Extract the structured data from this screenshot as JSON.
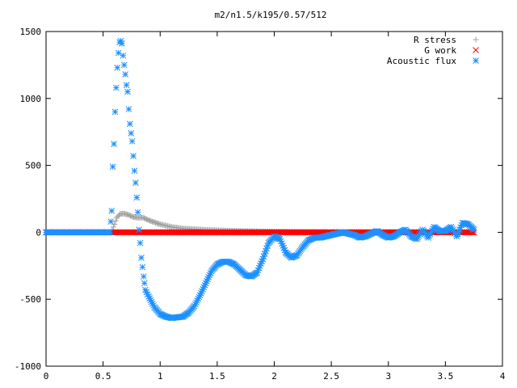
{
  "chart_data": {
    "type": "scatter",
    "title": "m2/n1.5/k195/0.57/512",
    "xlabel": "",
    "ylabel": "",
    "xlim": [
      0,
      4
    ],
    "ylim": [
      -1000,
      1500
    ],
    "xticks": [
      0,
      0.5,
      1,
      1.5,
      2,
      2.5,
      3,
      3.5,
      4
    ],
    "xtick_labels": [
      "0",
      "0.5",
      "1",
      "1.5",
      "2",
      "2.5",
      "3",
      "3.5",
      "4"
    ],
    "yticks": [
      -1000,
      -500,
      0,
      500,
      1000,
      1500
    ],
    "ytick_labels": [
      "-1000",
      "-500",
      "0",
      "500",
      "1000",
      "1500"
    ],
    "grid": false,
    "legend_position": "top-right",
    "series": [
      {
        "name": "R stress",
        "marker": "plus",
        "color": "#a0a0a0",
        "x": [
          0.0,
          0.57,
          0.6,
          0.62,
          0.65,
          0.68,
          0.72,
          0.76,
          0.8,
          0.85,
          0.9,
          0.95,
          1.0,
          1.1,
          1.2,
          1.4,
          1.6,
          1.8,
          2.0,
          2.3,
          2.6,
          3.0,
          3.4,
          3.75
        ],
        "y": [
          0,
          0,
          60,
          110,
          138,
          140,
          132,
          115,
          110,
          110,
          90,
          75,
          60,
          40,
          28,
          18,
          12,
          8,
          5,
          3,
          2,
          1,
          0,
          0
        ]
      },
      {
        "name": "G work",
        "marker": "cross",
        "color": "#ff0000",
        "x": [
          0.0,
          0.57,
          1.0,
          1.5,
          2.0,
          2.5,
          3.0,
          3.5,
          3.75
        ],
        "y": [
          0,
          0,
          0,
          0,
          0,
          0,
          0,
          0,
          0
        ]
      },
      {
        "name": "Acoustic flux",
        "marker": "star",
        "color": "#1e90ff",
        "x": [
          0.0,
          0.56,
          0.575,
          0.585,
          0.595,
          0.605,
          0.615,
          0.625,
          0.635,
          0.645,
          0.655,
          0.665,
          0.675,
          0.685,
          0.695,
          0.705,
          0.715,
          0.725,
          0.735,
          0.745,
          0.755,
          0.765,
          0.775,
          0.785,
          0.795,
          0.805,
          0.815,
          0.825,
          0.835,
          0.845,
          0.855,
          0.87,
          0.9,
          0.95,
          1.0,
          1.05,
          1.1,
          1.15,
          1.2,
          1.25,
          1.3,
          1.35,
          1.4,
          1.45,
          1.5,
          1.55,
          1.6,
          1.65,
          1.7,
          1.75,
          1.8,
          1.85,
          1.9,
          1.95,
          2.0,
          2.05,
          2.1,
          2.15,
          2.2,
          2.25,
          2.3,
          2.35,
          2.4,
          2.45,
          2.5,
          2.55,
          2.6,
          2.65,
          2.7,
          2.75,
          2.8,
          2.85,
          2.9,
          2.95,
          3.0,
          3.05,
          3.1,
          3.15,
          3.2,
          3.25,
          3.3,
          3.35,
          3.4,
          3.45,
          3.5,
          3.55,
          3.6,
          3.65,
          3.7,
          3.75
        ],
        "y": [
          0,
          0,
          160,
          490,
          660,
          900,
          1080,
          1230,
          1340,
          1420,
          1430,
          1410,
          1320,
          1250,
          1180,
          1100,
          1050,
          920,
          810,
          740,
          680,
          570,
          460,
          370,
          260,
          150,
          20,
          -80,
          -190,
          -260,
          -330,
          -430,
          -480,
          -560,
          -610,
          -630,
          -640,
          -635,
          -630,
          -600,
          -550,
          -470,
          -380,
          -290,
          -240,
          -220,
          -220,
          -240,
          -280,
          -320,
          -330,
          -300,
          -200,
          -80,
          -30,
          -50,
          -150,
          -190,
          -170,
          -110,
          -60,
          -40,
          -40,
          -30,
          -20,
          -10,
          0,
          -10,
          -20,
          -40,
          -30,
          -10,
          10,
          -20,
          -40,
          -30,
          0,
          20,
          -30,
          -50,
          20,
          -40,
          40,
          10,
          10,
          40,
          -30,
          70,
          60,
          20
        ]
      }
    ]
  }
}
